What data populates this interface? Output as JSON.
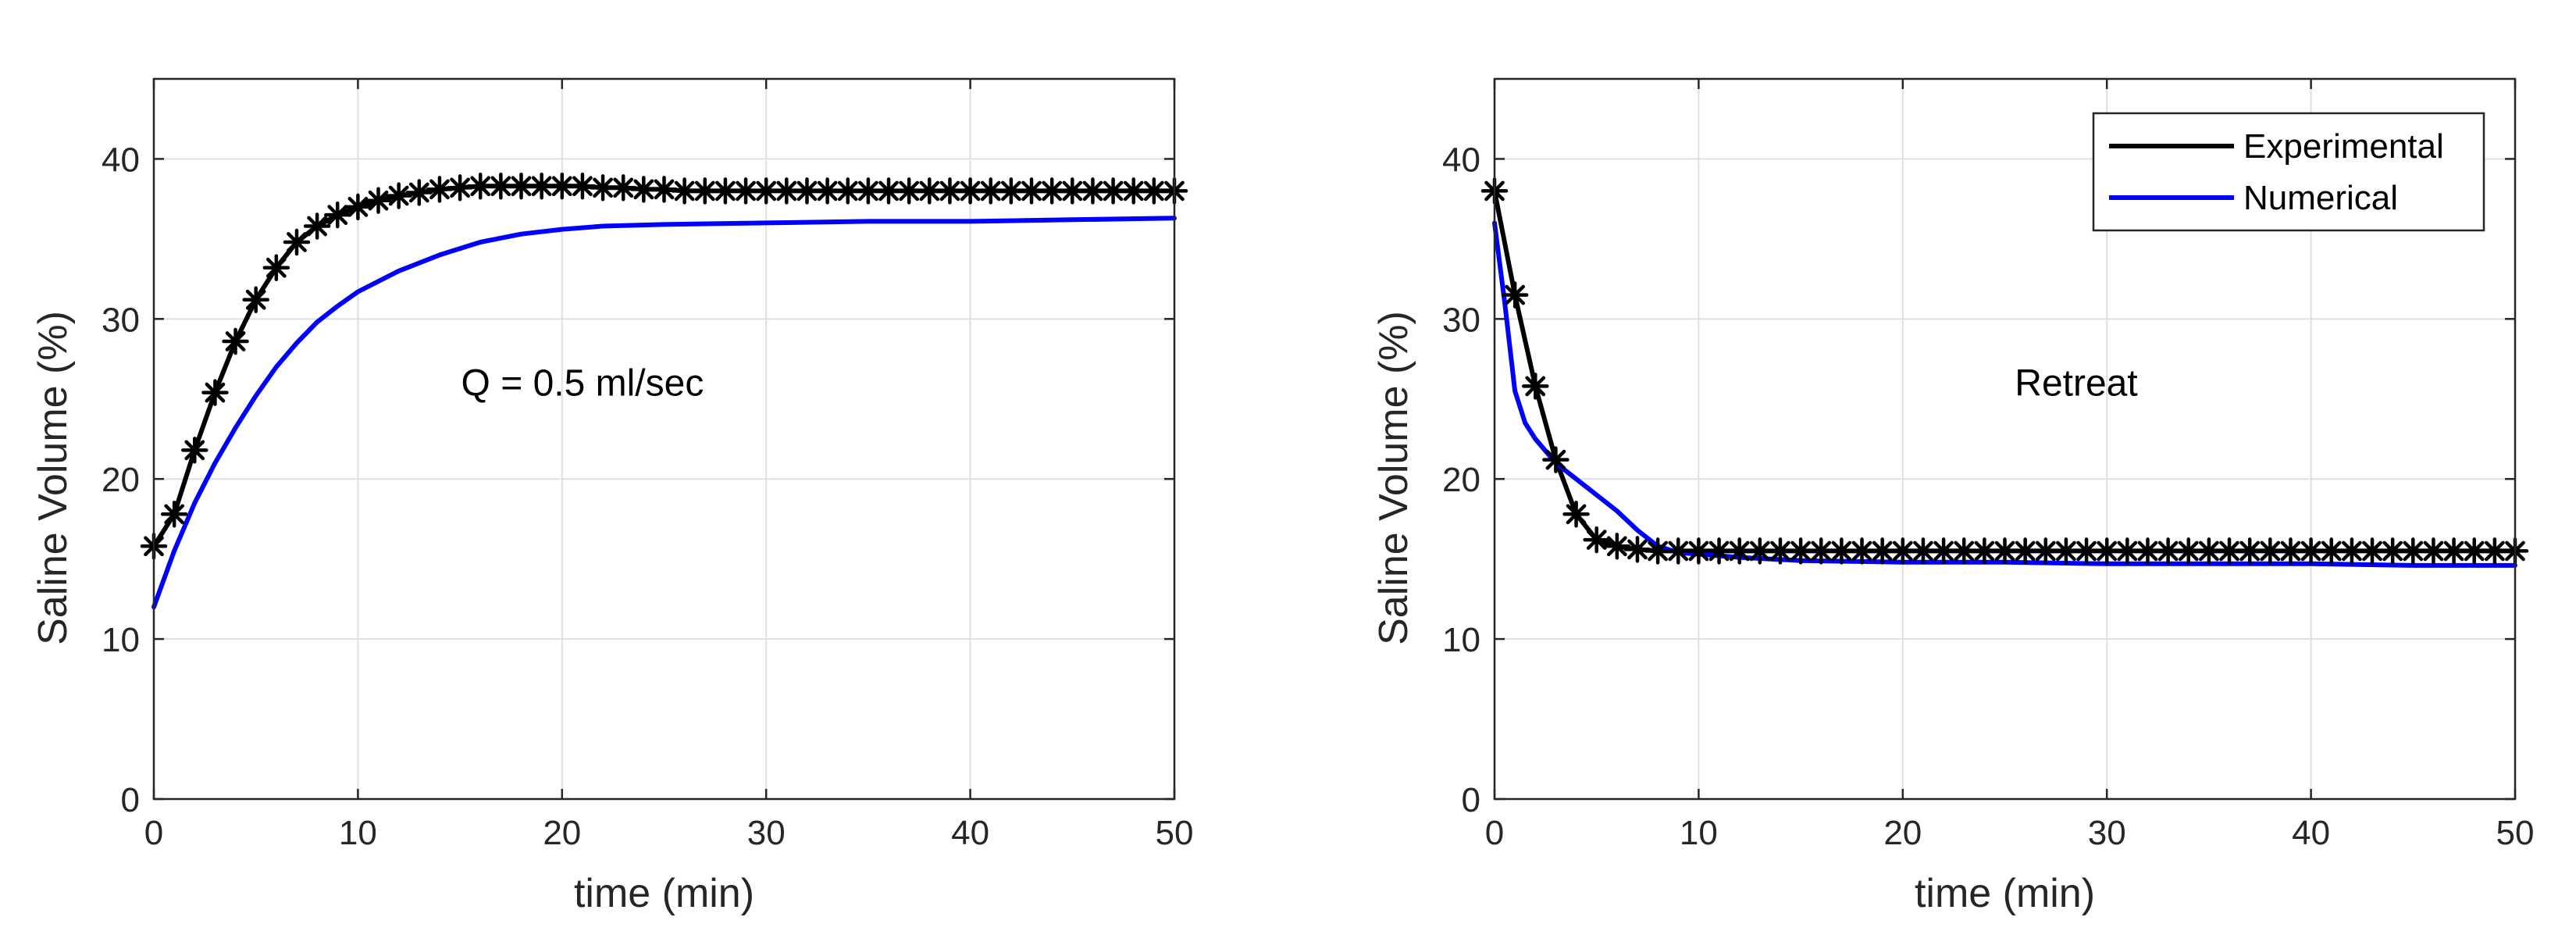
{
  "chart_data": [
    {
      "type": "line",
      "annotation": "Q = 0.5 ml/sec",
      "xlabel": "time (min)",
      "ylabel": "Saline Volume (%)",
      "xlim": [
        0,
        50
      ],
      "ylim": [
        0,
        45
      ],
      "xticks": [
        0,
        10,
        20,
        30,
        40,
        50
      ],
      "yticks": [
        0,
        10,
        20,
        30,
        40
      ],
      "grid": true,
      "series": [
        {
          "name": "Experimental",
          "color": "#000000",
          "marker": "asterisk",
          "x": [
            0,
            1,
            2,
            3,
            4,
            5,
            6,
            7,
            8,
            9,
            10,
            11,
            12,
            13,
            14,
            15,
            16,
            17,
            18,
            19,
            20,
            21,
            22,
            23,
            24,
            25,
            26,
            27,
            28,
            29,
            30,
            31,
            32,
            33,
            34,
            35,
            36,
            37,
            38,
            39,
            40,
            41,
            42,
            43,
            44,
            45,
            46,
            47,
            48,
            49,
            50
          ],
          "y": [
            15.8,
            17.8,
            21.8,
            25.4,
            28.6,
            31.2,
            33.2,
            34.8,
            35.8,
            36.5,
            37.0,
            37.4,
            37.7,
            37.9,
            38.1,
            38.2,
            38.3,
            38.3,
            38.3,
            38.3,
            38.3,
            38.3,
            38.2,
            38.2,
            38.1,
            38.1,
            38.0,
            38.0,
            38.0,
            38.0,
            38.0,
            38.0,
            38.0,
            38.0,
            38.0,
            38.0,
            38.0,
            38.0,
            38.0,
            38.0,
            38.0,
            38.0,
            38.0,
            38.0,
            38.0,
            38.0,
            38.0,
            38.0,
            38.0,
            38.0,
            38.0
          ]
        },
        {
          "name": "Numerical",
          "color": "#0000ff",
          "x": [
            0,
            1,
            2,
            3,
            4,
            5,
            6,
            7,
            8,
            9,
            10,
            12,
            14,
            16,
            18,
            20,
            22,
            25,
            30,
            35,
            40,
            45,
            50
          ],
          "y": [
            12.0,
            15.5,
            18.5,
            21.0,
            23.2,
            25.2,
            27.0,
            28.5,
            29.8,
            30.8,
            31.7,
            33.0,
            34.0,
            34.8,
            35.3,
            35.6,
            35.8,
            35.9,
            36.0,
            36.1,
            36.1,
            36.2,
            36.3
          ]
        }
      ]
    },
    {
      "type": "line",
      "annotation": "Retreat",
      "xlabel": "time (min)",
      "ylabel": "Saline Volume (%)",
      "xlim": [
        0,
        50
      ],
      "ylim": [
        0,
        45
      ],
      "xticks": [
        0,
        10,
        20,
        30,
        40,
        50
      ],
      "yticks": [
        0,
        10,
        20,
        30,
        40
      ],
      "grid": true,
      "legend": "top-right",
      "series": [
        {
          "name": "Experimental",
          "color": "#000000",
          "marker": "asterisk",
          "x": [
            0,
            1,
            2,
            3,
            4,
            5,
            6,
            7,
            8,
            9,
            10,
            11,
            12,
            13,
            14,
            15,
            16,
            17,
            18,
            19,
            20,
            21,
            22,
            23,
            24,
            25,
            26,
            27,
            28,
            29,
            30,
            31,
            32,
            33,
            34,
            35,
            36,
            37,
            38,
            39,
            40,
            41,
            42,
            43,
            44,
            45,
            46,
            47,
            48,
            49,
            50
          ],
          "y": [
            38.0,
            31.5,
            25.8,
            21.2,
            17.8,
            16.2,
            15.8,
            15.6,
            15.5,
            15.5,
            15.5,
            15.5,
            15.5,
            15.5,
            15.5,
            15.5,
            15.5,
            15.5,
            15.5,
            15.5,
            15.5,
            15.5,
            15.5,
            15.5,
            15.5,
            15.5,
            15.5,
            15.5,
            15.5,
            15.5,
            15.5,
            15.5,
            15.5,
            15.5,
            15.5,
            15.5,
            15.5,
            15.5,
            15.5,
            15.5,
            15.5,
            15.5,
            15.5,
            15.5,
            15.5,
            15.5,
            15.5,
            15.5,
            15.5,
            15.5,
            15.5
          ]
        },
        {
          "name": "Numerical",
          "color": "#0000ff",
          "x": [
            0,
            0.5,
            1,
            1.5,
            2,
            3,
            4,
            5,
            6,
            7,
            8,
            9,
            10,
            12,
            15,
            20,
            25,
            30,
            35,
            40,
            45,
            50
          ],
          "y": [
            36.0,
            31.0,
            25.5,
            23.5,
            22.5,
            21.0,
            20.0,
            19.0,
            18.0,
            16.8,
            15.8,
            15.4,
            15.3,
            15.1,
            14.9,
            14.8,
            14.8,
            14.7,
            14.7,
            14.7,
            14.6,
            14.6
          ]
        }
      ]
    }
  ]
}
